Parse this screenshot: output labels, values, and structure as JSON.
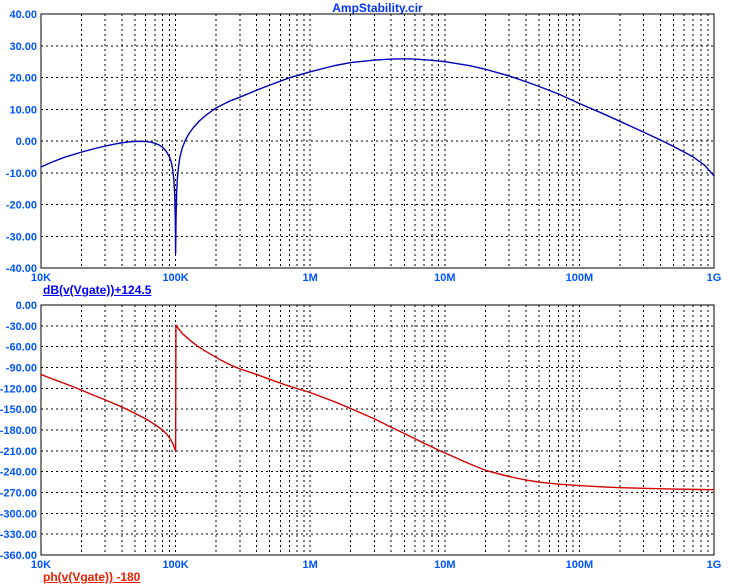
{
  "colors": {
    "grid": "#000000",
    "frame": "#000000",
    "tick_label": "#0055ff",
    "title_blue": "#0033ff",
    "magnitude_curve": "#0000bb",
    "magnitude_label": "#0000ff",
    "phase_curve": "#d40000",
    "phase_label": "#f02000",
    "background": "#ffffff"
  },
  "chart_data": [
    {
      "id": "magnitude",
      "type": "line",
      "title": "AmpStability.cir",
      "xscale": "log",
      "xlim": [
        10000,
        1000000000
      ],
      "ylim": [
        -40,
        40
      ],
      "grid": "dashed",
      "xtick_labels": [
        "10K",
        "100K",
        "1M",
        "10M",
        "100M",
        "1G"
      ],
      "ytick_labels": [
        "40.00",
        "30.00",
        "20.00",
        "10.00",
        "0.00",
        "-10.00",
        "-20.00",
        "-30.00",
        "-40.00"
      ],
      "expression_label": "dB(v(Vgate))+124.5",
      "series": [
        {
          "name": "dB(v(Vgate))+124.5",
          "color_key": "magnitude_curve",
          "points": [
            [
              10000,
              -8.2
            ],
            [
              12000,
              -6.7
            ],
            [
              15000,
              -5.1
            ],
            [
              20000,
              -3.5
            ],
            [
              25000,
              -2.4
            ],
            [
              30000,
              -1.6
            ],
            [
              35000,
              -1.0
            ],
            [
              40000,
              -0.55
            ],
            [
              45000,
              -0.3
            ],
            [
              50000,
              -0.15
            ],
            [
              55000,
              -0.1
            ],
            [
              60000,
              -0.15
            ],
            [
              65000,
              -0.35
            ],
            [
              70000,
              -0.7
            ],
            [
              75000,
              -1.2
            ],
            [
              80000,
              -2.0
            ],
            [
              85000,
              -3.2
            ],
            [
              90000,
              -5.0
            ],
            [
              93000,
              -6.8
            ],
            [
              95000,
              -8.8
            ],
            [
              97000,
              -12.0
            ],
            [
              98500,
              -17.0
            ],
            [
              99500,
              -25.0
            ],
            [
              100000,
              -35.5
            ],
            [
              100800,
              -24.0
            ],
            [
              101800,
              -16.5
            ],
            [
              103000,
              -12.0
            ],
            [
              105000,
              -8.2
            ],
            [
              108000,
              -4.8
            ],
            [
              112000,
              -2.2
            ],
            [
              118000,
              0.2
            ],
            [
              126000,
              2.4
            ],
            [
              136000,
              4.3
            ],
            [
              150000,
              6.3
            ],
            [
              170000,
              8.3
            ],
            [
              200000,
              10.4
            ],
            [
              250000,
              12.5
            ],
            [
              300000,
              13.8
            ],
            [
              400000,
              16.0
            ],
            [
              500000,
              17.6
            ],
            [
              700000,
              19.9
            ],
            [
              1000000,
              21.8
            ],
            [
              1500000,
              23.7
            ],
            [
              2000000,
              24.7
            ],
            [
              3000000,
              25.5
            ],
            [
              4000000,
              25.8
            ],
            [
              5000000,
              25.9
            ],
            [
              6000000,
              25.8
            ],
            [
              8000000,
              25.4
            ],
            [
              10000000,
              25.0
            ],
            [
              15000000,
              23.8
            ],
            [
              20000000,
              22.6
            ],
            [
              30000000,
              20.5
            ],
            [
              40000000,
              18.7
            ],
            [
              50000000,
              17.2
            ],
            [
              70000000,
              14.8
            ],
            [
              100000000,
              11.8
            ],
            [
              150000000,
              8.6
            ],
            [
              200000000,
              6.2
            ],
            [
              300000000,
              2.8
            ],
            [
              400000000,
              0.3
            ],
            [
              500000000,
              -1.7
            ],
            [
              700000000,
              -5.0
            ],
            [
              850000000,
              -7.6
            ],
            [
              1000000000,
              -11.0
            ]
          ]
        }
      ]
    },
    {
      "id": "phase",
      "type": "line",
      "title": "",
      "xscale": "log",
      "xlim": [
        10000,
        1000000000
      ],
      "ylim": [
        -360,
        0
      ],
      "grid": "dashed",
      "xtick_labels": [
        "10K",
        "100K",
        "1M",
        "10M",
        "100M",
        "1G"
      ],
      "ytick_labels": [
        "0.00",
        "-30.00",
        "-60.00",
        "-90.00",
        "-120.00",
        "-150.00",
        "-180.00",
        "-210.00",
        "-240.00",
        "-270.00",
        "-300.00",
        "-330.00",
        "-360.00"
      ],
      "expression_label": "ph(v(Vgate)) -180",
      "series": [
        {
          "name": "ph(v(Vgate)) -180",
          "color_key": "phase_curve",
          "points": [
            [
              10000,
              -100
            ],
            [
              12000,
              -106
            ],
            [
              15000,
              -113
            ],
            [
              18000,
              -119
            ],
            [
              22000,
              -126
            ],
            [
              27000,
              -133
            ],
            [
              33000,
              -140
            ],
            [
              40000,
              -147
            ],
            [
              50000,
              -156
            ],
            [
              60000,
              -164
            ],
            [
              70000,
              -172
            ],
            [
              80000,
              -180
            ],
            [
              85000,
              -185
            ],
            [
              90000,
              -191
            ],
            [
              94000,
              -197
            ],
            [
              97000,
              -203
            ],
            [
              100000,
              -210
            ],
            [
              100600,
              -29
            ],
            [
              103000,
              -32
            ],
            [
              107000,
              -36
            ],
            [
              112000,
              -41
            ],
            [
              120000,
              -46
            ],
            [
              130000,
              -52
            ],
            [
              145000,
              -59
            ],
            [
              165000,
              -66
            ],
            [
              190000,
              -73
            ],
            [
              220000,
              -80
            ],
            [
              260000,
              -87
            ],
            [
              300000,
              -92
            ],
            [
              400000,
              -100
            ],
            [
              500000,
              -107
            ],
            [
              700000,
              -117
            ],
            [
              1000000,
              -126
            ],
            [
              1500000,
              -139
            ],
            [
              2000000,
              -149
            ],
            [
              3000000,
              -164
            ],
            [
              4000000,
              -176
            ],
            [
              5000000,
              -185
            ],
            [
              7000000,
              -199
            ],
            [
              9000000,
              -209
            ],
            [
              10000000,
              -213
            ],
            [
              15000000,
              -228
            ],
            [
              20000000,
              -238
            ],
            [
              30000000,
              -247
            ],
            [
              40000000,
              -252
            ],
            [
              50000000,
              -255
            ],
            [
              70000000,
              -258
            ],
            [
              100000000,
              -260
            ],
            [
              150000000,
              -262
            ],
            [
              200000000,
              -263
            ],
            [
              300000000,
              -264
            ],
            [
              500000000,
              -265
            ],
            [
              700000000,
              -265.5
            ],
            [
              1000000000,
              -266
            ]
          ]
        }
      ]
    }
  ]
}
